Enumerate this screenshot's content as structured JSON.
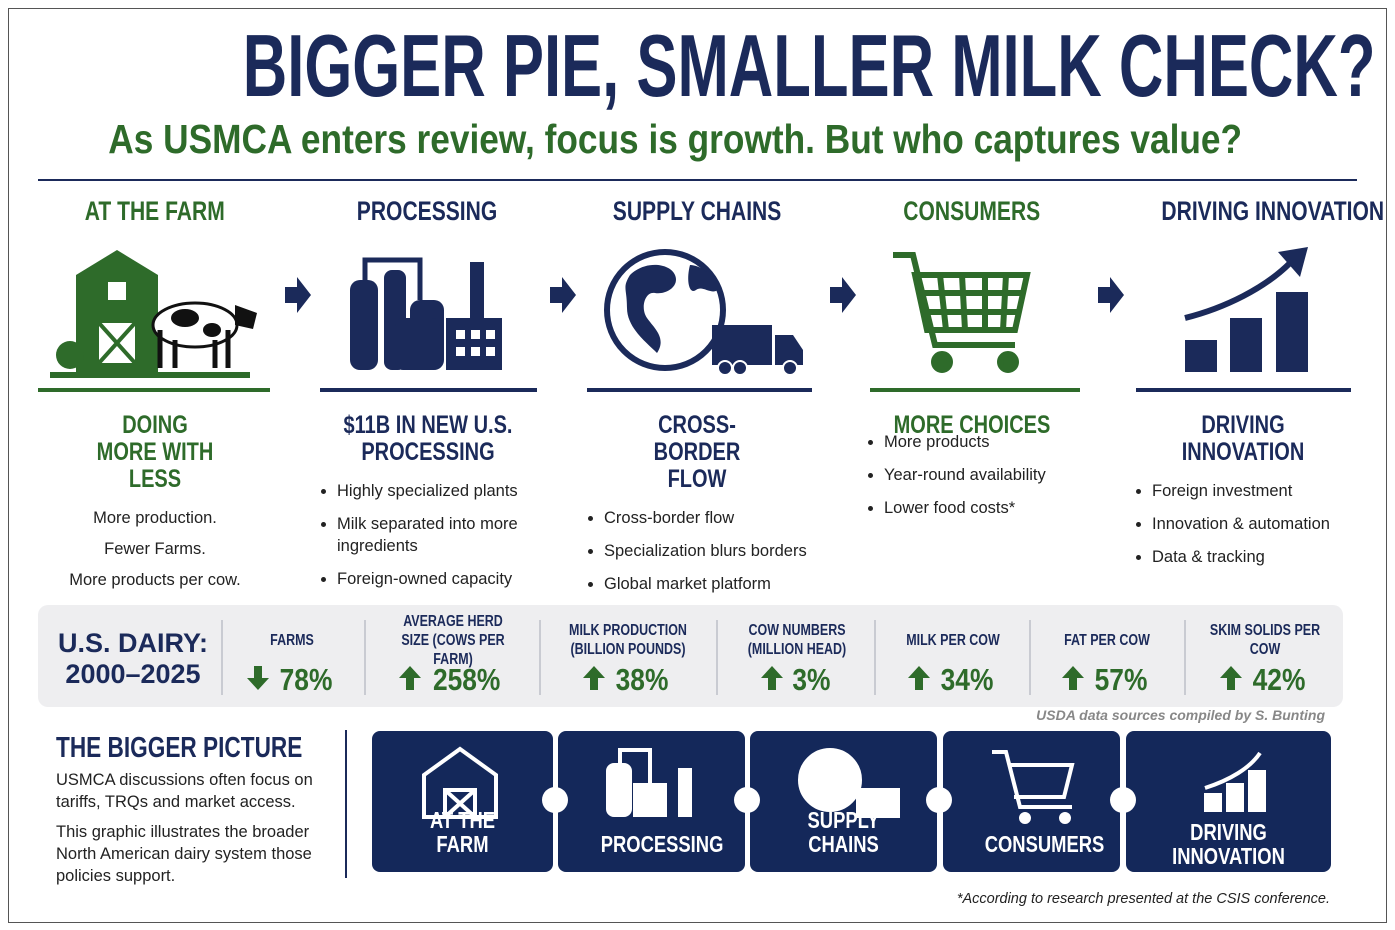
{
  "header": {
    "title": "BIGGER PIE, SMALLER MILK CHECK?",
    "subtitle": "As USMCA enters review, focus is growth. But who captures value?"
  },
  "columns": [
    {
      "heading": "AT THE FARM",
      "subheading": "DOING MORE WITH LESS",
      "items": [
        "More production.",
        "Fewer Farms.",
        "More products per cow."
      ]
    },
    {
      "heading": "PROCESSING",
      "subheading": "$11B IN NEW U.S. PROCESSING",
      "items": [
        "Highly specialized plants",
        "Milk separated into more ingredients",
        "Foreign-owned capacity"
      ]
    },
    {
      "heading": "SUPPLY CHAINS",
      "subheading": "CROSS-BORDER FLOW",
      "items": [
        "Cross-border flow",
        "Specialization blurs borders",
        "Global market platform"
      ]
    },
    {
      "heading": "CONSUMERS",
      "subheading": "MORE CHOICES",
      "items": [
        "More products",
        "Year-round availability",
        "Lower food costs*"
      ]
    },
    {
      "heading": "DRIVING INNOVATION",
      "subheading": "DRIVING INNOVATION",
      "items": [
        "Foreign investment",
        "Innovation & automation",
        "Data & tracking"
      ]
    }
  ],
  "stats": {
    "label": "U.S. DAIRY: 2000–2025",
    "items": [
      {
        "label": "FARMS",
        "value": "78%",
        "trend": "down"
      },
      {
        "label": "AVERAGE HERD SIZE (COWS PER FARM)",
        "value": "258%",
        "trend": "up"
      },
      {
        "label": "MILK PRODUCTION (BILLION POUNDS)",
        "value": "38%",
        "trend": "up"
      },
      {
        "label": "COW NUMBERS (MILLION HEAD)",
        "value": "3%",
        "trend": "up"
      },
      {
        "label": "MILK PER COW",
        "value": "34%",
        "trend": "up"
      },
      {
        "label": "FAT PER COW",
        "value": "57%",
        "trend": "up"
      },
      {
        "label": "SKIM SOLIDS PER COW",
        "value": "42%",
        "trend": "up"
      }
    ],
    "source": "USDA data sources compiled by S. Bunting"
  },
  "bigger_picture": {
    "title": "THE BIGGER PICTURE",
    "paragraphs": [
      "USMCA discussions often focus on tariffs, TRQs and market access.",
      "This graphic illustrates the broader North American dairy system those policies support."
    ]
  },
  "pieces": [
    "AT THE FARM",
    "PROCESSING",
    "SUPPLY CHAINS",
    "CONSUMERS",
    "DRIVING INNOVATION"
  ],
  "footnote": "*According to research presented at the CSIS conference."
}
